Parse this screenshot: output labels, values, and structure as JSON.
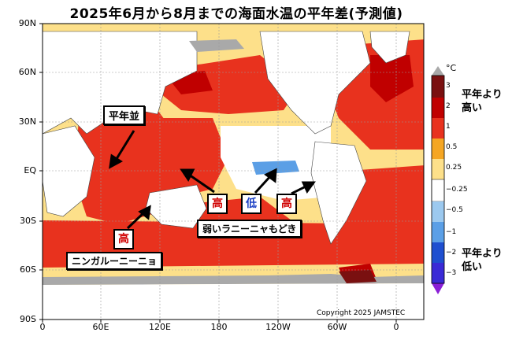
{
  "title": "2025年6月から8月までの海面水温の平年差(予測値)",
  "axes": {
    "lat_labels": [
      "90N",
      "60N",
      "30N",
      "EQ",
      "30S",
      "60S",
      "90S"
    ],
    "lon_labels": [
      "0",
      "60E",
      "120E",
      "180",
      "120W",
      "60W",
      "0"
    ]
  },
  "legend": {
    "unit": "°C",
    "ticks": [
      "3",
      "2",
      "1",
      "0.5",
      "0.25",
      "−0.25",
      "−0.5",
      "−1",
      "−2",
      "−3"
    ],
    "colors": [
      "#7a1010",
      "#c00000",
      "#e8321e",
      "#f5a623",
      "#fde08a",
      "#ffffff",
      "#9cc9ef",
      "#5b9fe6",
      "#1f4fd0",
      "#3a2ad6",
      "#8a1fd6"
    ],
    "above_label": "平年より\n高い",
    "below_label": "平年より\n低い"
  },
  "annotations": {
    "normal_label": "平年並",
    "la_nina_label": "弱いラニーニャもどき",
    "ningaloo_label": "ニンガルーニーニョ",
    "high_1": "高",
    "low_1": "低",
    "high_2": "高",
    "high_3": "高"
  },
  "copyright": "Copyright 2025 JAMSTEC",
  "colors": {
    "warm_strong": "#c00000",
    "warm": "#e8321e",
    "warm_light": "#f5a623",
    "warm_pale": "#fde08a",
    "cool": "#5b9fe6",
    "land": "#ffffff",
    "ice": "#a9a9a9",
    "low_badge_text": "#1a3fc4",
    "high_badge_text": "#d00000"
  }
}
